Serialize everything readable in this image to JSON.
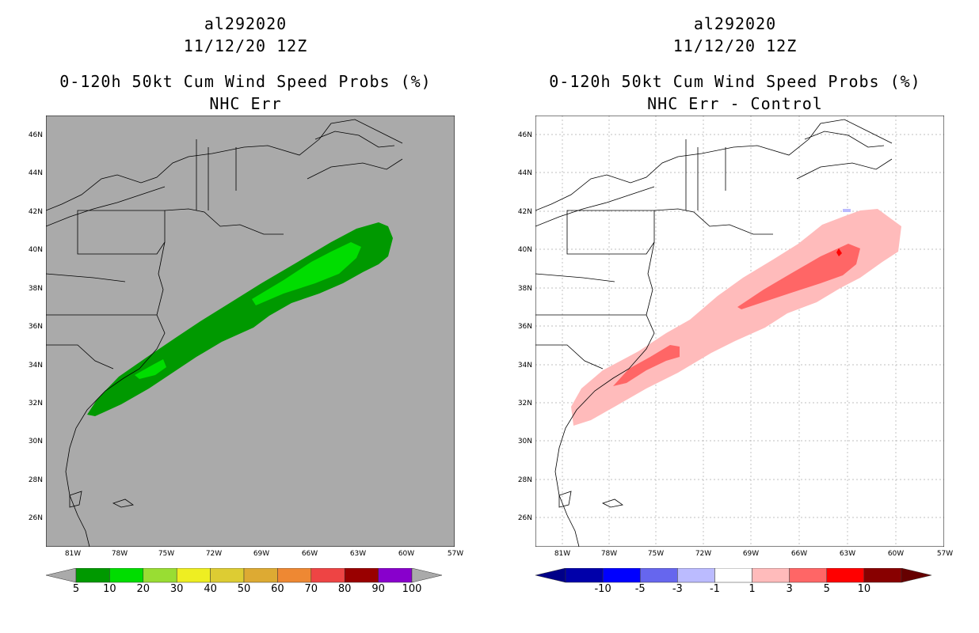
{
  "left": {
    "title1": "al292020",
    "title2": "11/12/20 12Z",
    "title3": "0-120h 50kt Cum Wind Speed Probs (%)",
    "title4": "NHC Err",
    "background": "#aaaaaa",
    "colorbar": {
      "colors": [
        "#009900",
        "#00dd00",
        "#99dd33",
        "#eeee22",
        "#ddcc33",
        "#ddaa33",
        "#ee8833",
        "#ee4444",
        "#990000",
        "#8800cc"
      ],
      "labels": [
        "5",
        "10",
        "20",
        "30",
        "40",
        "50",
        "60",
        "70",
        "80",
        "90",
        "100"
      ]
    }
  },
  "right": {
    "title1": "al292020",
    "title2": "11/12/20 12Z",
    "title3": "0-120h 50kt Cum Wind Speed Probs (%)",
    "title4": "NHC Err - Control",
    "background": "#ffffff",
    "colorbar": {
      "colors": [
        "#0000aa",
        "#0000ff",
        "#6666ee",
        "#bbbbff",
        "#ffffff",
        "#ffbbbb",
        "#ff6666",
        "#ff0000",
        "#880000"
      ],
      "labels": [
        "-10",
        "-5",
        "-3",
        "-1",
        "1",
        "3",
        "5",
        "10"
      ]
    }
  },
  "axes": {
    "lat_labels": [
      "46N",
      "44N",
      "42N",
      "40N",
      "38N",
      "36N",
      "34N",
      "32N",
      "30N",
      "28N",
      "26N"
    ],
    "lon_labels": [
      "81W",
      "78W",
      "75W",
      "72W",
      "69W",
      "66W",
      "63W",
      "60W",
      "57W"
    ]
  }
}
